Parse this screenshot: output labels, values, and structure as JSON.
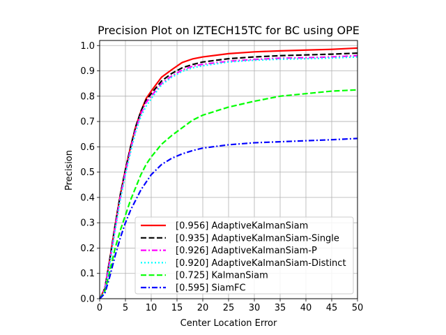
{
  "chart_data": {
    "type": "line",
    "title": "Precision Plot on IZTECH15TC for BC using OPE",
    "xlabel": "Center Location Error",
    "ylabel": "Precision",
    "xlim": [
      0,
      50
    ],
    "ylim": [
      0,
      1.02
    ],
    "xticks": [
      0,
      5,
      10,
      15,
      20,
      25,
      30,
      35,
      40,
      45,
      50
    ],
    "yticks": [
      0.0,
      0.1,
      0.2,
      0.3,
      0.4,
      0.5,
      0.6,
      0.7,
      0.8,
      0.9,
      1.0
    ],
    "grid": true,
    "legend_position": "lower-right",
    "x": [
      0,
      1,
      2,
      3,
      4,
      5,
      6,
      7,
      8,
      9,
      10,
      12,
      14,
      16,
      18,
      20,
      25,
      30,
      35,
      40,
      45,
      50
    ],
    "series": [
      {
        "name": "[0.956] AdaptiveKalmanSiam",
        "color": "#ff0000",
        "dash": "solid",
        "values": [
          0.0,
          0.04,
          0.16,
          0.29,
          0.41,
          0.51,
          0.6,
          0.68,
          0.74,
          0.79,
          0.82,
          0.875,
          0.905,
          0.933,
          0.947,
          0.955,
          0.968,
          0.975,
          0.979,
          0.982,
          0.985,
          0.99
        ]
      },
      {
        "name": "[0.935] AdaptiveKalmanSiam-Single",
        "color": "#000000",
        "dash": "dashed",
        "values": [
          0.0,
          0.04,
          0.16,
          0.29,
          0.41,
          0.51,
          0.6,
          0.68,
          0.74,
          0.785,
          0.81,
          0.86,
          0.89,
          0.912,
          0.925,
          0.935,
          0.948,
          0.955,
          0.96,
          0.963,
          0.966,
          0.97
        ]
      },
      {
        "name": "[0.926] AdaptiveKalmanSiam-P",
        "color": "#ff00ff",
        "dash": "dashdot",
        "values": [
          0.0,
          0.04,
          0.15,
          0.28,
          0.4,
          0.5,
          0.59,
          0.67,
          0.73,
          0.775,
          0.8,
          0.85,
          0.88,
          0.903,
          0.918,
          0.926,
          0.938,
          0.945,
          0.95,
          0.952,
          0.955,
          0.96
        ]
      },
      {
        "name": "[0.920] AdaptiveKalmanSiam-Distinct",
        "color": "#00ffff",
        "dash": "dotted",
        "values": [
          0.0,
          0.03,
          0.14,
          0.27,
          0.39,
          0.49,
          0.58,
          0.66,
          0.72,
          0.76,
          0.79,
          0.845,
          0.875,
          0.898,
          0.912,
          0.92,
          0.935,
          0.942,
          0.946,
          0.948,
          0.951,
          0.955
        ]
      },
      {
        "name": "[0.725] KalmanSiam",
        "color": "#00ff00",
        "dash": "dashed",
        "values": [
          0.0,
          0.03,
          0.11,
          0.2,
          0.27,
          0.33,
          0.39,
          0.44,
          0.49,
          0.53,
          0.56,
          0.61,
          0.645,
          0.675,
          0.705,
          0.725,
          0.757,
          0.78,
          0.8,
          0.81,
          0.82,
          0.825
        ]
      },
      {
        "name": "[0.595] SiamFC",
        "color": "#0000ff",
        "dash": "dashdot",
        "values": [
          0.0,
          0.02,
          0.09,
          0.17,
          0.24,
          0.3,
          0.35,
          0.39,
          0.43,
          0.46,
          0.49,
          0.53,
          0.555,
          0.572,
          0.585,
          0.595,
          0.608,
          0.616,
          0.62,
          0.624,
          0.628,
          0.633
        ]
      }
    ]
  }
}
